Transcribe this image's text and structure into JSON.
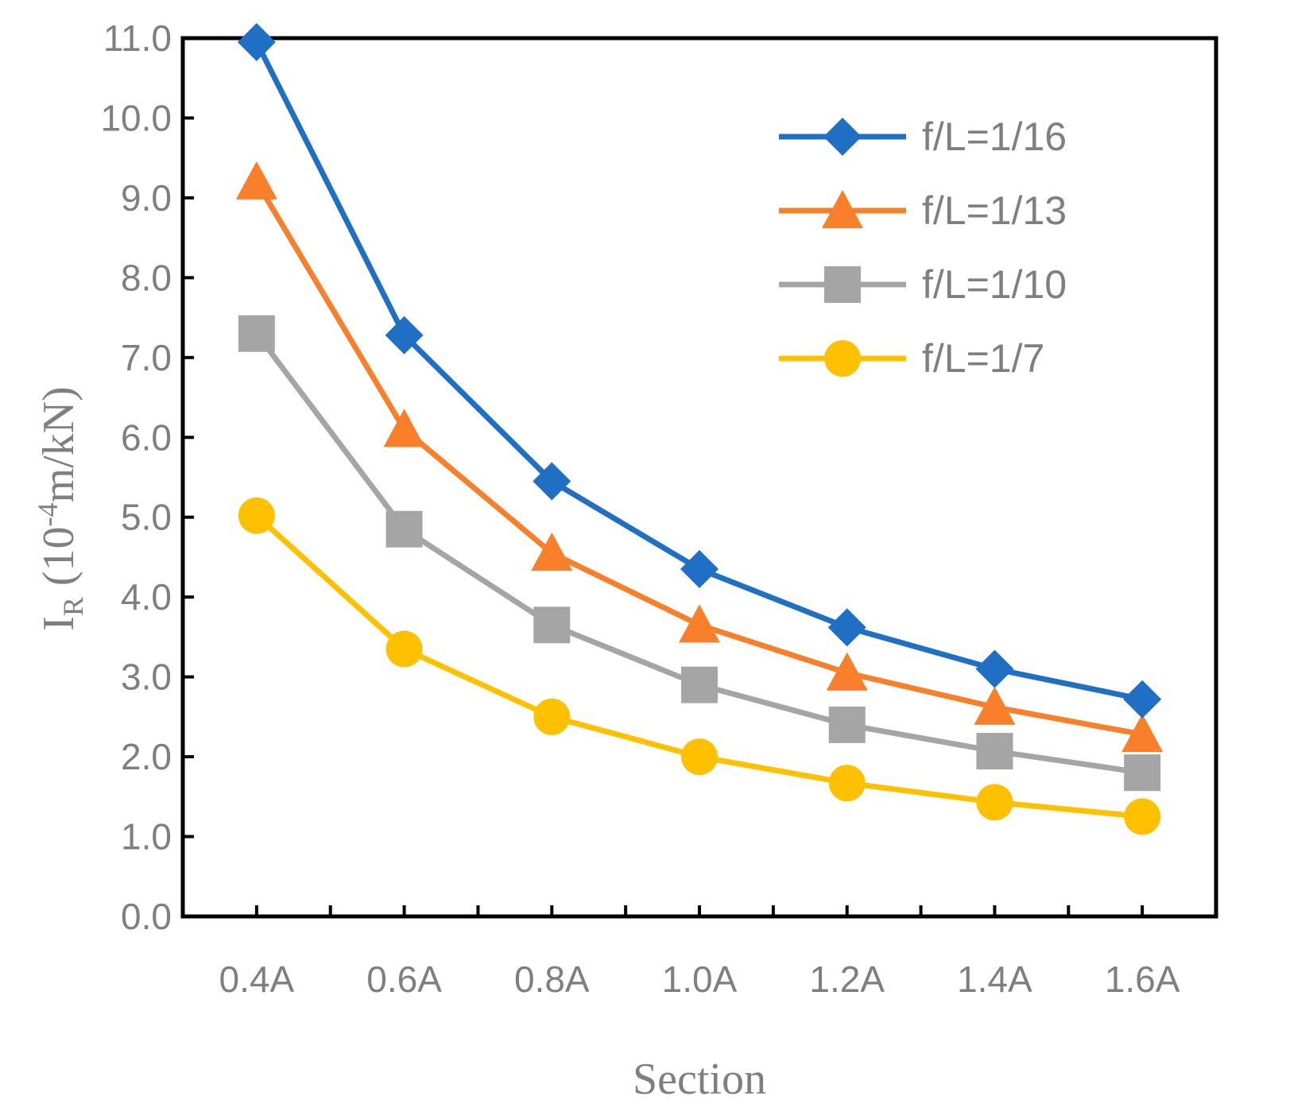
{
  "chart_data": {
    "type": "line",
    "title": "",
    "categories": [
      "0.4A",
      "0.6A",
      "0.8A",
      "1.0A",
      "1.2A",
      "1.4A",
      "1.6A"
    ],
    "xlabel": "Section",
    "ylabel": {
      "main": "I",
      "sub": "R",
      "paren_open": " (10",
      "sup": "-4",
      "unit": "m/kN)"
    },
    "ylim": [
      0,
      11
    ],
    "yticks": [
      "0.0",
      "1.0",
      "2.0",
      "3.0",
      "4.0",
      "5.0",
      "6.0",
      "7.0",
      "8.0",
      "9.0",
      "10.0",
      "11.0"
    ],
    "grid": false,
    "legend_position": "top-right",
    "series": [
      {
        "name": "f/L=1/16",
        "color": "#1f6fc4",
        "marker": "diamond",
        "values": [
          10.95,
          7.28,
          5.45,
          4.35,
          3.62,
          3.1,
          2.72
        ]
      },
      {
        "name": "f/L=1/13",
        "color": "#f97f2a",
        "marker": "triangle",
        "values": [
          9.2,
          6.1,
          4.55,
          3.65,
          3.05,
          2.62,
          2.28
        ]
      },
      {
        "name": "f/L=1/10",
        "color": "#a5a5a5",
        "marker": "square",
        "values": [
          7.3,
          4.85,
          3.65,
          2.9,
          2.4,
          2.07,
          1.8
        ]
      },
      {
        "name": "f/L=1/7",
        "color": "#ffc000",
        "marker": "circle",
        "values": [
          5.02,
          3.35,
          2.5,
          2.0,
          1.67,
          1.43,
          1.25
        ]
      }
    ]
  }
}
